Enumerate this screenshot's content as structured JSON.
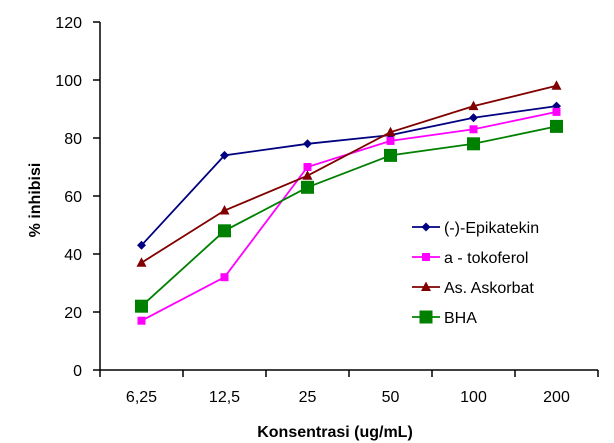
{
  "chart_data": {
    "type": "line",
    "title": "",
    "xlabel": "Konsentrasi (ug/mL)",
    "ylabel": "% inhibisi",
    "categories": [
      "6,25",
      "12,5",
      "25",
      "50",
      "100",
      "200"
    ],
    "ylim": [
      0,
      120
    ],
    "yticks": [
      0,
      20,
      40,
      60,
      80,
      100,
      120
    ],
    "grid": false,
    "legend_position": "right",
    "series": [
      {
        "name": "(-)-Epikatekin",
        "values": [
          43,
          74,
          78,
          81,
          87,
          91
        ],
        "color": "#000080",
        "marker": "diamond"
      },
      {
        "name": "a - tokoferol",
        "values": [
          17,
          32,
          70,
          79,
          83,
          89
        ],
        "color": "#ff00ff",
        "marker": "square"
      },
      {
        "name": "As. Askorbat",
        "values": [
          37,
          55,
          67,
          82,
          91,
          98
        ],
        "color": "#800000",
        "marker": "triangle"
      },
      {
        "name": "BHA",
        "values": [
          22,
          48,
          63,
          74,
          78,
          84
        ],
        "color": "#008000",
        "marker": "square-large"
      }
    ]
  }
}
